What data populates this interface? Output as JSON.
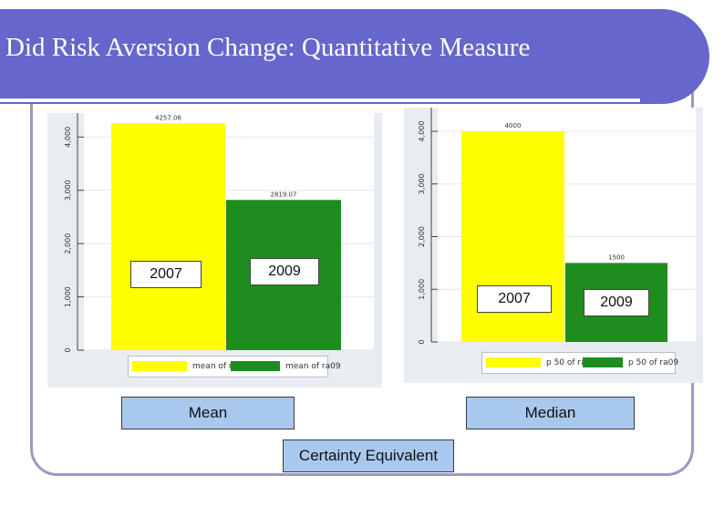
{
  "slide": {
    "title": "Did Risk Aversion Change: Quantitative Measure"
  },
  "colors": {
    "title_band": "#6666cc",
    "frame": "#9a9ac4",
    "series_2007": "#ffff00",
    "series_2009": "#1e8c1e",
    "callout_fill": "#a9c8ee"
  },
  "annotations": {
    "mean_2007": "2007",
    "mean_2009": "2009",
    "median_2007": "2007",
    "median_2009": "2009",
    "mean_label": "Mean",
    "median_label": "Median",
    "footer_label": "Certainty Equivalent"
  },
  "chart_data": [
    {
      "type": "bar",
      "ylim": [
        0,
        4450
      ],
      "yticks": [
        0,
        1000,
        2000,
        3000,
        4000
      ],
      "ytick_labels": [
        "0",
        "1,000",
        "2,000",
        "3,000",
        "4,000"
      ],
      "series": [
        {
          "name": "mean of ra06",
          "values": [
            4257.06
          ]
        },
        {
          "name": "mean of ra09",
          "values": [
            2819.07
          ]
        }
      ],
      "data_labels": [
        "4257.06",
        "2819.07"
      ],
      "legend": [
        "mean of ra06",
        "mean of ra09"
      ],
      "legend_position": "bottom",
      "grid": true
    },
    {
      "type": "bar",
      "ylim": [
        0,
        4450
      ],
      "yticks": [
        0,
        1000,
        2000,
        3000,
        4000
      ],
      "ytick_labels": [
        "0",
        "1,000",
        "2,000",
        "3,000",
        "4,000"
      ],
      "series": [
        {
          "name": "p 50 of ra06",
          "values": [
            4000
          ]
        },
        {
          "name": "p 50 of ra09",
          "values": [
            1500
          ]
        }
      ],
      "data_labels": [
        "4000",
        "1500"
      ],
      "legend": [
        "p 50 of ra06",
        "p 50 of ra09"
      ],
      "legend_position": "bottom",
      "grid": true
    }
  ]
}
